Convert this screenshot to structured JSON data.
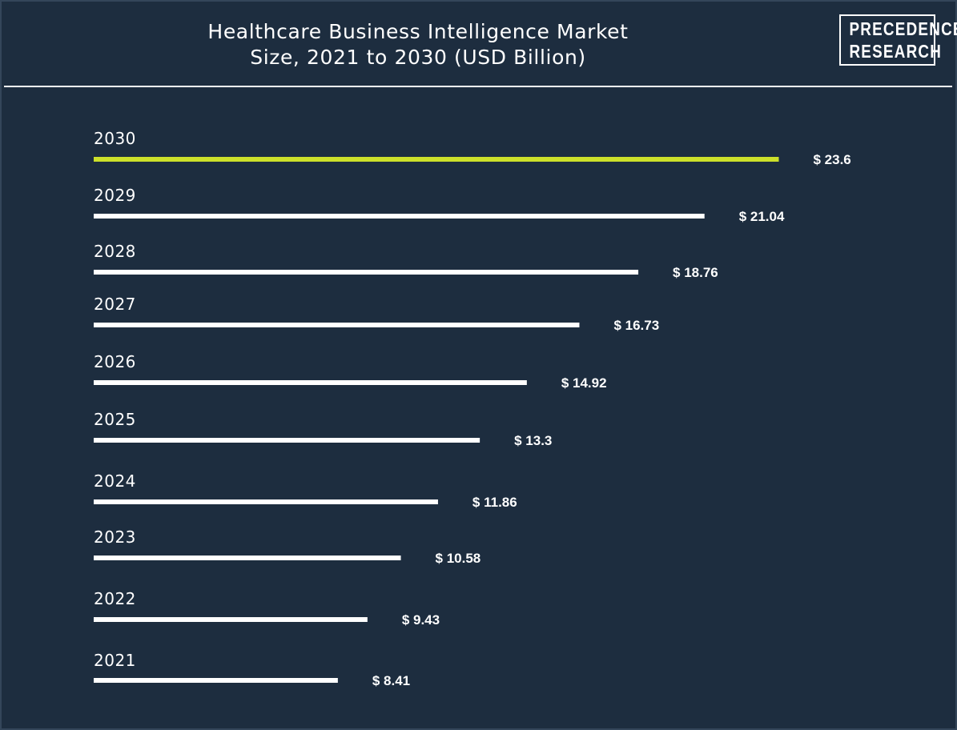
{
  "title_line1": "Healthcare Business Intelligence Market",
  "title_line2": "Size, 2021 to 2030 (USD Billion)",
  "logo": {
    "line1": "PRECEDENCE",
    "line2": "RESEARCH"
  },
  "colors": {
    "background": "#1d2d3f",
    "bar": "#ffffff",
    "highlight_bar": "#cce02a",
    "text": "#ffffff"
  },
  "chart_data": {
    "type": "bar",
    "orientation": "horizontal",
    "title": "Healthcare Business Intelligence Market Size, 2021 to 2030 (USD Billion)",
    "categories": [
      "2030",
      "2029",
      "2028",
      "2027",
      "2026",
      "2025",
      "2024",
      "2023",
      "2022",
      "2021"
    ],
    "values": [
      23.6,
      21.04,
      18.76,
      16.73,
      14.92,
      13.3,
      11.86,
      10.58,
      9.43,
      8.41
    ],
    "value_labels": [
      "$ 23.6",
      "$ 21.04",
      "$ 18.76",
      "$ 16.73",
      "$ 14.92",
      "$ 13.3",
      "$ 11.86",
      "$ 10.58",
      "$ 9.43",
      "$ 8.41"
    ],
    "highlight_category": "2030",
    "grid": false,
    "legend": "none"
  }
}
